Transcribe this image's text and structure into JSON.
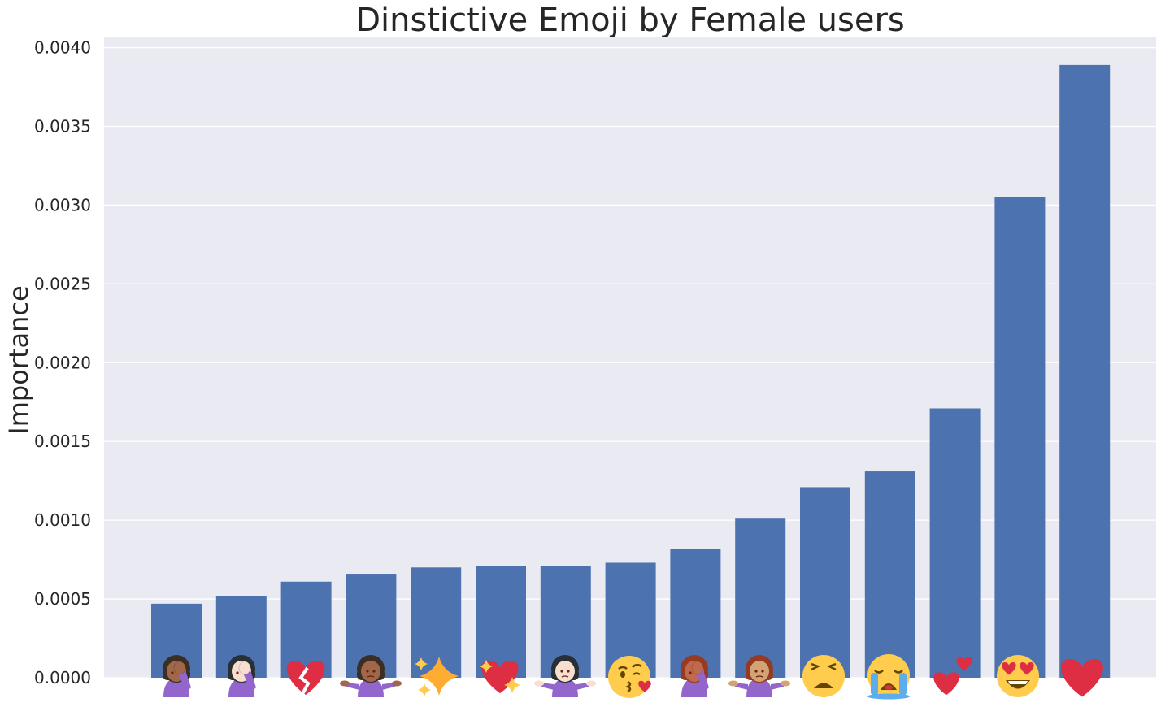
{
  "chart_data": {
    "type": "bar",
    "title": "Dinstictive Emoji by Female users",
    "xlabel": "",
    "ylabel": "Importance",
    "ylim": [
      0,
      0.00407
    ],
    "yticks": [
      "0.0000",
      "0.0005",
      "0.0010",
      "0.0015",
      "0.0020",
      "0.0025",
      "0.0030",
      "0.0035",
      "0.0040"
    ],
    "grid": true,
    "legend": "none",
    "bar_color": "#4c72b0",
    "plot_background": "#eaeaf2",
    "categories": [
      "woman facepalming: medium-dark skin tone",
      "woman facepalming: light skin tone",
      "broken heart",
      "woman shrugging: medium-dark skin tone",
      "sparkles",
      "sparkling heart",
      "woman shrugging: light skin tone",
      "face blowing a kiss",
      "woman facepalming: medium skin tone",
      "woman shrugging: medium skin tone",
      "weary face",
      "loudly crying face",
      "two hearts",
      "smiling face with heart-eyes",
      "red heart"
    ],
    "values": [
      0.00047,
      0.00052,
      0.00061,
      0.00066,
      0.0007,
      0.00071,
      0.00071,
      0.00073,
      0.00082,
      0.00101,
      0.00121,
      0.00131,
      0.00171,
      0.00305,
      0.00389
    ]
  }
}
